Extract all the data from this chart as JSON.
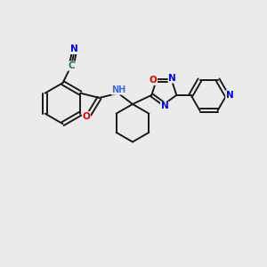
{
  "bg_color": "#ebebeb",
  "bond_color": "#1a1a1a",
  "atom_colors": {
    "N": "#0000ee",
    "O": "#dd0000",
    "C_label": "#2e7a5a",
    "H": "#4169e1"
  },
  "bond_lw": 1.4,
  "font_size": 8.0
}
